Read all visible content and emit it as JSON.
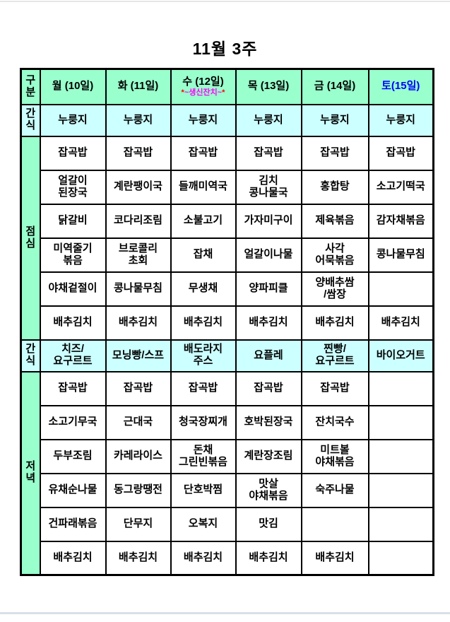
{
  "page": {
    "title": "11월 3주"
  },
  "colors": {
    "header_green": "#99FFCC",
    "snack_cyan": "#CCFFFF",
    "saturday_blue": "#0000FF",
    "event_star_red": "#FF0000",
    "event_text_magenta": "#FF00FF",
    "border_black": "#000000"
  },
  "table": {
    "corner_label": "구분",
    "day_headers": [
      "월 (10일)",
      "화 (11일)",
      "수 (12일)",
      "목 (13일)",
      "금 (14일)",
      "토(15일)"
    ],
    "wednesday_event": {
      "star": "*",
      "text": "~생신잔치~"
    },
    "sections": [
      {
        "type": "snack",
        "label": "간식",
        "rows": [
          [
            "누룽지",
            "누룽지",
            "누룽지",
            "누룽지",
            "누룽지",
            "누룽지"
          ]
        ]
      },
      {
        "type": "meal",
        "label": "점심",
        "rows": [
          [
            "잡곡밥",
            "잡곡밥",
            "잡곡밥",
            "잡곡밥",
            "잡곡밥",
            "잡곡밥"
          ],
          [
            "얼갈이\n된장국",
            "계란팽이국",
            "들깨미역국",
            "김치\n콩나물국",
            "홍합탕",
            "소고기떡국"
          ],
          [
            "닭갈비",
            "코다리조림",
            "소불고기",
            "가자미구이",
            "제육볶음",
            "감자채볶음"
          ],
          [
            "미역줄기\n볶음",
            "브로콜리\n초회",
            "잡채",
            "얼갈이나물",
            "사각\n어묵볶음",
            "콩나물무침"
          ],
          [
            "야채겉절이",
            "콩나물무침",
            "무생채",
            "양파피클",
            "양배추쌈\n/쌈장",
            ""
          ],
          [
            "배추김치",
            "배추김치",
            "배추김치",
            "배추김치",
            "배추김치",
            "배추김치"
          ]
        ]
      },
      {
        "type": "snack",
        "label": "간식",
        "rows": [
          [
            "치즈/\n요구르트",
            "모닝빵/스프",
            "배도라지\n주스",
            "요플레",
            "찐빵/\n요구르트",
            "바이오거트"
          ]
        ]
      },
      {
        "type": "meal",
        "label": "저녁",
        "rows": [
          [
            "잡곡밥",
            "잡곡밥",
            "잡곡밥",
            "잡곡밥",
            "잡곡밥",
            ""
          ],
          [
            "소고기무국",
            "근대국",
            "청국장찌개",
            "호박된장국",
            "잔치국수",
            ""
          ],
          [
            "두부조림",
            "카레라이스",
            "돈채\n그린빈볶음",
            "계란장조림",
            "미트볼\n야채볶음",
            ""
          ],
          [
            "유채순나물",
            "동그랑땡전",
            "단호박찜",
            "맛살\n야채볶음",
            "숙주나물",
            ""
          ],
          [
            "건파래볶음",
            "단무지",
            "오복지",
            "맛김",
            "",
            ""
          ],
          [
            "배추김치",
            "배추김치",
            "배추김치",
            "배추김치",
            "배추김치",
            ""
          ]
        ]
      }
    ]
  }
}
